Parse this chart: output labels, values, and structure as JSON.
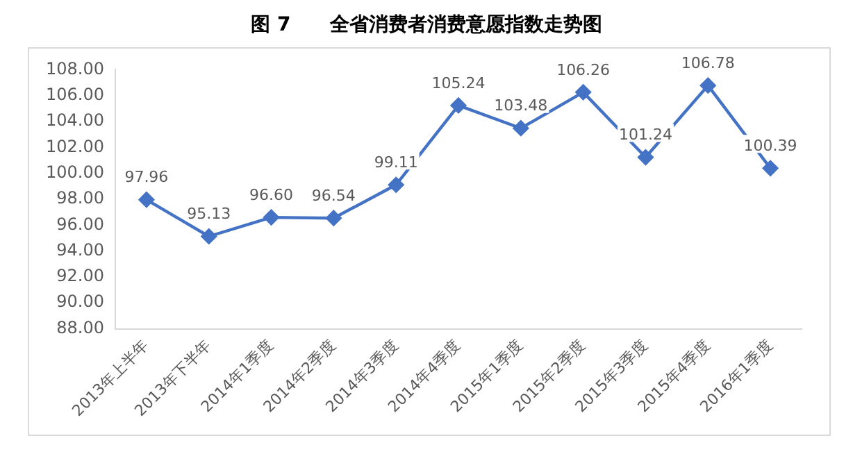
{
  "chart_data": {
    "type": "line",
    "title": "图 7　　全省消费者消费意愿指数走势图",
    "categories": [
      "2013年上半年",
      "2013年下半年",
      "2014年1季度",
      "2014年2季度",
      "2014年3季度",
      "2014年4季度",
      "2015年1季度",
      "2015年2季度",
      "2015年3季度",
      "2015年4季度",
      "2016年1季度"
    ],
    "series": [
      {
        "color": "#4472c4",
        "values": [
          97.96,
          95.13,
          96.6,
          96.54,
          99.11,
          105.24,
          103.48,
          106.26,
          101.24,
          106.78,
          100.39
        ]
      }
    ],
    "ylim": [
      88,
      108
    ],
    "yticks": [
      {
        "value": 88,
        "label": "88.00"
      },
      {
        "value": 90,
        "label": "90.00"
      },
      {
        "value": 92,
        "label": "92.00"
      },
      {
        "value": 94,
        "label": "94.00"
      },
      {
        "value": 96,
        "label": "96.00"
      },
      {
        "value": 98,
        "label": "98.00"
      },
      {
        "value": 100,
        "label": "100.00"
      },
      {
        "value": 102,
        "label": "102.00"
      },
      {
        "value": 104,
        "label": "104.00"
      },
      {
        "value": 106,
        "label": "106.00"
      },
      {
        "value": 108,
        "label": "108.00"
      }
    ],
    "value_labels": [
      [
        "97.96",
        "95.13",
        "96.60",
        "96.54",
        "99.11",
        "105.24",
        "103.48",
        "106.26",
        "101.24",
        "106.78",
        "100.39"
      ]
    ],
    "grid": false,
    "legend": false,
    "marker": "diamond",
    "line_style": "solid"
  }
}
